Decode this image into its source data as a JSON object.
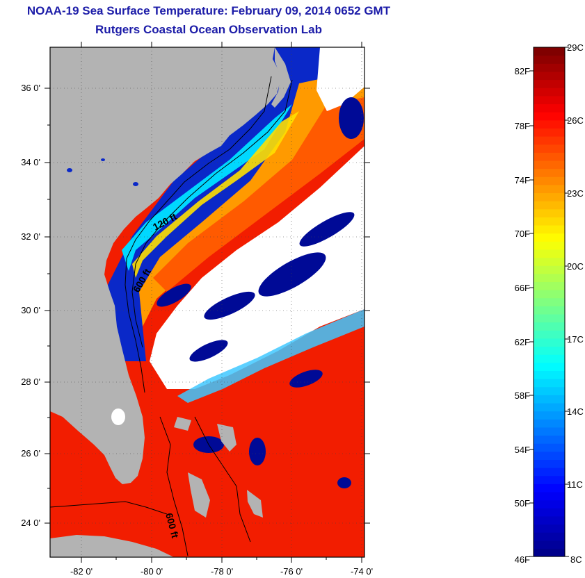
{
  "header": {
    "title": "NOAA-19 Sea Surface Temperature:  February 09, 2014 0652 GMT",
    "subtitle": "Rutgers Coastal Ocean Observation Lab"
  },
  "map": {
    "lat_labels": [
      "36 0'",
      "34 0'",
      "32 0'",
      "30 0'",
      "28 0'",
      "26 0'",
      "24 0'"
    ],
    "lon_labels": [
      "-82 0'",
      "-80 0'",
      "-78 0'",
      "-76 0'",
      "-74 0'"
    ],
    "contour_labels": [
      "120 ft",
      "600 ft",
      "600 ft"
    ],
    "colors": {
      "land": "#b3b3b3",
      "cloud": "#ffffff",
      "frame": "#000000"
    }
  },
  "colorbar": {
    "celsius_labels": [
      "29C",
      "26C",
      "23C",
      "20C",
      "17C",
      "14C",
      "11C",
      "8C"
    ],
    "fahrenheit_labels": [
      "82F",
      "78F",
      "74F",
      "70F",
      "66F",
      "62F",
      "58F",
      "54F",
      "50F",
      "46F"
    ],
    "colors": [
      "#00008c",
      "#0000ff",
      "#0080ff",
      "#00ffff",
      "#80ff80",
      "#ffff00",
      "#ff8000",
      "#ff0000",
      "#800000"
    ]
  }
}
